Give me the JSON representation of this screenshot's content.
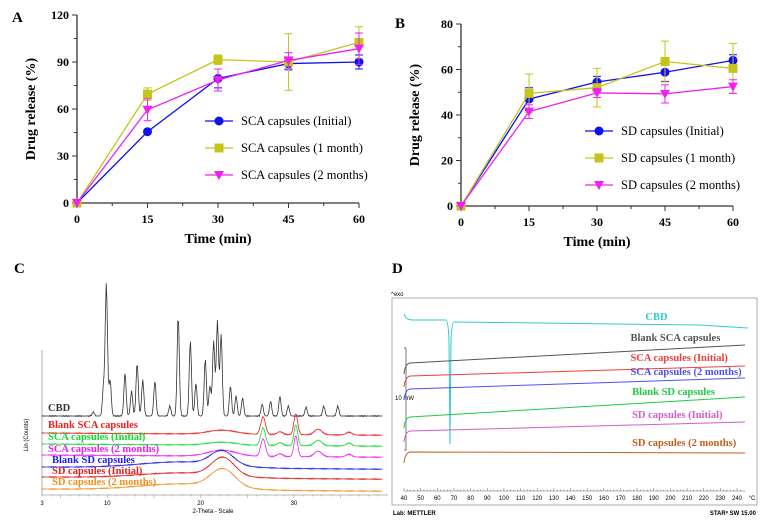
{
  "panel_labels": [
    "A",
    "B",
    "C",
    "D"
  ],
  "chart_data": [
    {
      "type": "line",
      "panel": "A",
      "xlabel": "Time (min)",
      "ylabel": "Drug release (%)",
      "x": [
        0,
        15,
        30,
        45,
        60
      ],
      "xlim": [
        0,
        60
      ],
      "ylim": [
        0,
        120
      ],
      "xticks": [
        "0",
        "15",
        "30",
        "45",
        "60"
      ],
      "yticks": [
        "0",
        "30",
        "60",
        "90",
        "120"
      ],
      "legend": "center-right",
      "series": [
        {
          "name": "SCA capsules (Initial)",
          "color": "#1010ee",
          "marker": "circle",
          "values": [
            0,
            45.5,
            79.5,
            89,
            90
          ],
          "errors": [
            0,
            1,
            6,
            4,
            4.5
          ]
        },
        {
          "name": "SCA capsules  (1 month)",
          "color": "#c4c41a",
          "marker": "square",
          "values": [
            0,
            69.5,
            91.5,
            90,
            102.5
          ],
          "errors": [
            0,
            4,
            3,
            18,
            10
          ]
        },
        {
          "name": "SCA capsules (2 months)",
          "color": "#ee22ee",
          "marker": "triangle-down",
          "values": [
            0,
            59.5,
            78.5,
            91,
            98.5
          ],
          "errors": [
            0,
            7,
            7,
            5,
            10
          ]
        }
      ]
    },
    {
      "type": "line",
      "panel": "B",
      "xlabel": "Time (min)",
      "ylabel": "Drug release (%)",
      "x": [
        0,
        15,
        30,
        45,
        60
      ],
      "xlim": [
        0,
        60
      ],
      "ylim": [
        0,
        80
      ],
      "xticks": [
        "0",
        "15",
        "30",
        "45",
        "60"
      ],
      "yticks": [
        "0",
        "20",
        "40",
        "60",
        "80"
      ],
      "legend": "center-right",
      "series": [
        {
          "name": "SD capsules (Initial)",
          "color": "#1010ee",
          "marker": "circle",
          "values": [
            0,
            47,
            54.5,
            58.8,
            64
          ],
          "errors": [
            0,
            5,
            2.5,
            4,
            2.5
          ]
        },
        {
          "name": "SD capsules  (1 month)",
          "color": "#c4c41a",
          "marker": "square",
          "values": [
            0,
            49.5,
            52,
            63.5,
            60.5
          ],
          "errors": [
            0,
            8.5,
            8.5,
            9,
            11
          ]
        },
        {
          "name": "SD capsules (2 months)",
          "color": "#ee22ee",
          "marker": "triangle-down",
          "values": [
            0,
            41.5,
            49.7,
            49.3,
            52.5
          ],
          "errors": [
            0,
            3,
            2,
            4,
            3
          ]
        }
      ]
    },
    {
      "type": "line",
      "panel": "C",
      "xlabel": "2-Theta - Scale",
      "ylabel": "Lin (Counts)",
      "xticks": [
        "3",
        "10",
        "20",
        "30"
      ],
      "series": [
        {
          "name": "CBD",
          "color": "#333333"
        },
        {
          "name": "Blank SCA capsules",
          "color": "#ee2020"
        },
        {
          "name": "SCA capsules  (Initial)",
          "color": "#10dd30"
        },
        {
          "name": "SCA capsules  (2 months)",
          "color": "#ee20ee"
        },
        {
          "name": "Blank SD capsules",
          "color": "#2020ee"
        },
        {
          "name": "SD capsules  (Initial)",
          "color": "#dd2020"
        },
        {
          "name": "SD capsules  (2 months)",
          "color": "#f59020"
        }
      ]
    },
    {
      "type": "line",
      "panel": "D",
      "ylabel": "^exo",
      "scale_label": "10 mW",
      "xunit": "°C",
      "xticks": [
        "40",
        "50",
        "60",
        "70",
        "80",
        "90",
        "100",
        "110",
        "120",
        "130",
        "140",
        "150",
        "160",
        "170",
        "180",
        "190",
        "200",
        "210",
        "220",
        "230",
        "240"
      ],
      "footer_left": "Lab: METTLER",
      "footer_right": "STARᵉ SW 15.00",
      "series": [
        {
          "name": "CBD",
          "color": "#30cccc"
        },
        {
          "name": "Blank SCA capsules",
          "color": "#555555"
        },
        {
          "name": "SCA capsules  (Initial)",
          "color": "#ee4040"
        },
        {
          "name": "SCA capsules  (2 months)",
          "color": "#5050ee"
        },
        {
          "name": "Blank SD capsules",
          "color": "#20cc40"
        },
        {
          "name": "SD capsules  (Initial)",
          "color": "#cc60cc"
        },
        {
          "name": "SD capsules  (2 months)",
          "color": "#c06020"
        }
      ]
    }
  ]
}
